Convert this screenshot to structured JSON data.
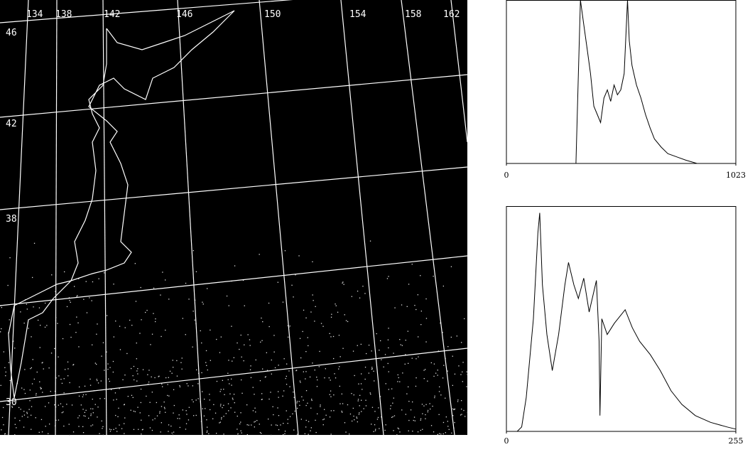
{
  "map": {
    "lon_labels": [
      "134",
      "138",
      "142",
      "146",
      "150",
      "154",
      "158",
      "162"
    ],
    "lat_labels": [
      "46",
      "42",
      "38",
      "30"
    ]
  },
  "chart_data": [
    {
      "type": "line",
      "color": "#000000",
      "x": [
        0,
        310,
        318,
        330,
        345,
        360,
        375,
        390,
        405,
        420,
        435,
        450,
        465,
        480,
        495,
        510,
        525,
        540,
        548,
        560,
        580,
        600,
        620,
        640,
        660,
        690,
        720,
        760,
        800,
        850,
        1023
      ],
      "values": [
        0,
        0,
        40,
        100,
        85,
        70,
        55,
        35,
        30,
        25,
        40,
        45,
        38,
        48,
        42,
        45,
        55,
        100,
        75,
        60,
        48,
        40,
        30,
        22,
        15,
        10,
        6,
        4,
        2,
        0,
        0
      ],
      "xlim": [
        0,
        1023
      ],
      "xticks": [
        0,
        1023
      ],
      "ylim": [
        0,
        100
      ]
    },
    {
      "type": "line",
      "color": "#000000",
      "x": [
        0,
        12,
        17,
        22,
        30,
        35,
        37,
        40,
        45,
        51,
        58,
        65,
        69,
        75,
        80,
        86,
        92,
        100,
        103,
        104,
        106,
        112,
        120,
        132,
        140,
        148,
        160,
        171,
        183,
        195,
        210,
        227,
        245,
        255
      ],
      "values": [
        0,
        0,
        2,
        15,
        50,
        88,
        97,
        65,
        43,
        27,
        43,
        65,
        75,
        65,
        59,
        68,
        53,
        67,
        40,
        7,
        50,
        43,
        48,
        54,
        46,
        40,
        34,
        27,
        18,
        12,
        7,
        4,
        2,
        1
      ],
      "xlim": [
        0,
        255
      ],
      "xticks": [
        0,
        255
      ],
      "ylim": [
        0,
        100
      ]
    }
  ]
}
